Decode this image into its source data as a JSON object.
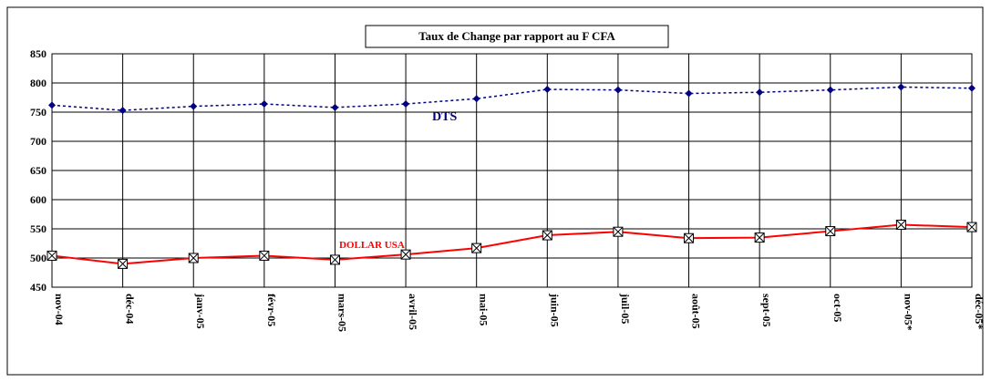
{
  "chart_data": {
    "type": "line",
    "title": "Taux de Change par rapport au F CFA",
    "categories": [
      "nov-04",
      "déc-04",
      "janv-05",
      "févr-05",
      "mars-05",
      "avril-05",
      "mai-05",
      "juin-05",
      "juil-05",
      "août-05",
      "sept-05",
      "oct-05",
      "nov-05*",
      "déc-05*"
    ],
    "series": [
      {
        "name": "DTS",
        "color": "#000080",
        "values": [
          762,
          753,
          760,
          764,
          758,
          764,
          773,
          789,
          788,
          782,
          784,
          788,
          793,
          791
        ]
      },
      {
        "name": "DOLLAR USA",
        "color": "#ff0000",
        "values": [
          504,
          490,
          500,
          504,
          497,
          506,
          517,
          539,
          545,
          534,
          535,
          546,
          557,
          553
        ]
      }
    ],
    "ylim": [
      450,
      850
    ],
    "yticks": [
      450,
      500,
      550,
      600,
      650,
      700,
      750,
      800,
      850
    ],
    "grid": true
  }
}
